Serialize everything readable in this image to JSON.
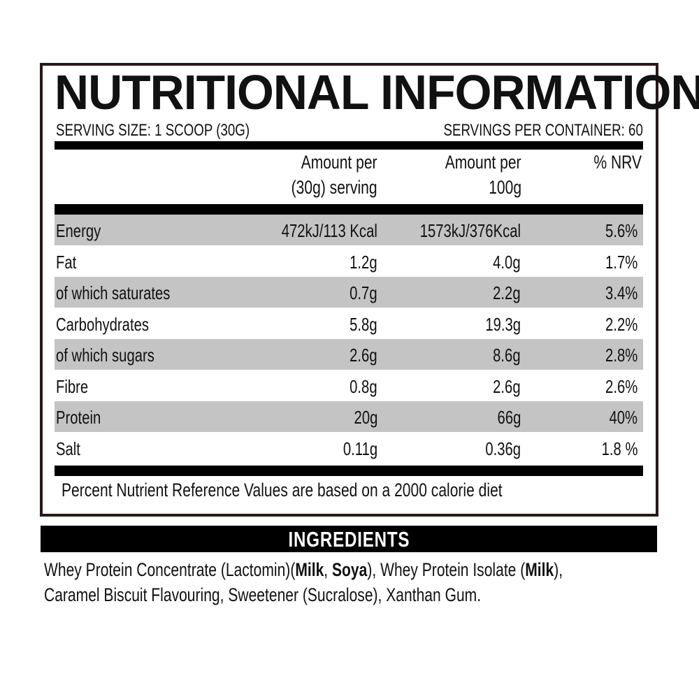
{
  "title": "NUTRITIONAL INFORMATION",
  "serving_size": "SERVING SIZE: 1 SCOOP (30G)",
  "servings_per_container": "SERVINGS PER CONTAINER:  60",
  "columns": {
    "per_serving_line1": "Amount per",
    "per_serving_line2": "(30g) serving",
    "per_100g_line1": "Amount per",
    "per_100g_line2": "100g",
    "nrv": "% NRV"
  },
  "rows": [
    {
      "name": "Energy",
      "serving": "472kJ/113 Kcal",
      "per100": "1573kJ/376Kcal",
      "nrv": "5.6%"
    },
    {
      "name": "Fat",
      "serving": "1.2g",
      "per100": "4.0g",
      "nrv": "1.7%"
    },
    {
      "name": "of which saturates",
      "serving": "0.7g",
      "per100": "2.2g",
      "nrv": "3.4%"
    },
    {
      "name": "Carbohydrates",
      "serving": "5.8g",
      "per100": "19.3g",
      "nrv": "2.2%"
    },
    {
      "name": "of which sugars",
      "serving": "2.6g",
      "per100": "8.6g",
      "nrv": "2.8%"
    },
    {
      "name": "Fibre",
      "serving": "0.8g",
      "per100": "2.6g",
      "nrv": "2.6%"
    },
    {
      "name": "Protein",
      "serving": "20g",
      "per100": "66g",
      "nrv": "40%"
    },
    {
      "name": "Salt",
      "serving": "0.11g",
      "per100": "0.36g",
      "nrv": "1.8 %"
    }
  ],
  "footnote": "Percent Nutrient Reference Values are based on a 2000 calorie diet",
  "ingredients": {
    "heading": "INGREDIENTS",
    "line1": [
      {
        "t": "Whey Protein Concentrate (Lactomin)(",
        "b": false
      },
      {
        "t": "Milk",
        "b": true
      },
      {
        "t": ", ",
        "b": false
      },
      {
        "t": "Soya",
        "b": true
      },
      {
        "t": "), Whey Protein Isolate (",
        "b": false
      },
      {
        "t": "Milk",
        "b": true
      },
      {
        "t": "),",
        "b": false
      }
    ],
    "line2": "Caramel Biscuit Flavouring, Sweetener (Sucralose), Xanthan Gum."
  },
  "colors": {
    "border": "#2a1818",
    "shade": "#c4c4c4",
    "bar": "#000000"
  }
}
